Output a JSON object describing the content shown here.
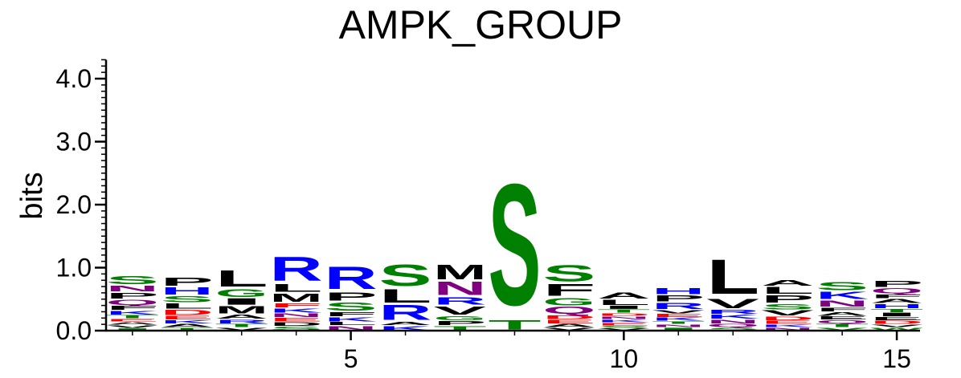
{
  "chart_data": {
    "type": "sequence-logo",
    "title": "AMPK_GROUP",
    "ylabel": "bits",
    "xlabel": "",
    "ylim": [
      0,
      4.3
    ],
    "y_major_ticks": [
      {
        "value": 0,
        "label": "0.0"
      },
      {
        "value": 1,
        "label": "1.0"
      },
      {
        "value": 2,
        "label": "2.0"
      },
      {
        "value": 3,
        "label": "3.0"
      },
      {
        "value": 4,
        "label": "4.0"
      }
    ],
    "y_minor_step": 0.1,
    "positions": [
      1,
      2,
      3,
      4,
      5,
      6,
      7,
      8,
      9,
      10,
      11,
      12,
      13,
      14,
      15
    ],
    "x_tick_labels": [
      {
        "position": 5,
        "label": "5"
      },
      {
        "position": 10,
        "label": "10"
      },
      {
        "position": 15,
        "label": "15"
      }
    ],
    "colors": {
      "green": "#008000",
      "blue": "#0000ff",
      "black": "#000000",
      "purple": "#800080",
      "red": "#ff0000"
    },
    "stacks": [
      {
        "position": 1,
        "letters": [
          {
            "letter": "I",
            "bits": 0.04,
            "color": "green"
          },
          {
            "letter": "V",
            "bits": 0.05,
            "color": "black"
          },
          {
            "letter": "A",
            "bits": 0.05,
            "color": "black"
          },
          {
            "letter": "E",
            "bits": 0.05,
            "color": "red"
          },
          {
            "letter": "T",
            "bits": 0.06,
            "color": "green"
          },
          {
            "letter": "K",
            "bits": 0.07,
            "color": "blue"
          },
          {
            "letter": "F",
            "bits": 0.08,
            "color": "black"
          },
          {
            "letter": "Q",
            "bits": 0.1,
            "color": "purple"
          },
          {
            "letter": "P",
            "bits": 0.11,
            "color": "black"
          },
          {
            "letter": "N",
            "bits": 0.11,
            "color": "purple"
          },
          {
            "letter": "S",
            "bits": 0.16,
            "color": "green"
          }
        ]
      },
      {
        "position": 2,
        "letters": [
          {
            "letter": "T",
            "bits": 0.05,
            "color": "green"
          },
          {
            "letter": "A",
            "bits": 0.06,
            "color": "black"
          },
          {
            "letter": "K",
            "bits": 0.06,
            "color": "blue"
          },
          {
            "letter": "E",
            "bits": 0.07,
            "color": "red"
          },
          {
            "letter": "D",
            "bits": 0.1,
            "color": "red"
          },
          {
            "letter": "L",
            "bits": 0.1,
            "color": "black"
          },
          {
            "letter": "S",
            "bits": 0.12,
            "color": "green"
          },
          {
            "letter": "H",
            "bits": 0.14,
            "color": "blue"
          },
          {
            "letter": "P",
            "bits": 0.16,
            "color": "black"
          }
        ]
      },
      {
        "position": 3,
        "letters": [
          {
            "letter": "V",
            "bits": 0.05,
            "color": "black"
          },
          {
            "letter": "T",
            "bits": 0.06,
            "color": "green"
          },
          {
            "letter": "R",
            "bits": 0.07,
            "color": "blue"
          },
          {
            "letter": "A",
            "bits": 0.08,
            "color": "black"
          },
          {
            "letter": "M",
            "bits": 0.14,
            "color": "black"
          },
          {
            "letter": "I",
            "bits": 0.12,
            "color": "black"
          },
          {
            "letter": "G",
            "bits": 0.15,
            "color": "green"
          },
          {
            "letter": "L",
            "bits": 0.3,
            "color": "black"
          }
        ]
      },
      {
        "position": 4,
        "letters": [
          {
            "letter": "S",
            "bits": 0.07,
            "color": "green"
          },
          {
            "letter": "D",
            "bits": 0.07,
            "color": "black"
          },
          {
            "letter": "E",
            "bits": 0.07,
            "color": "red"
          },
          {
            "letter": "N",
            "bits": 0.07,
            "color": "purple"
          },
          {
            "letter": "K",
            "bits": 0.08,
            "color": "blue"
          },
          {
            "letter": "F",
            "bits": 0.08,
            "color": "red"
          },
          {
            "letter": "M",
            "bits": 0.16,
            "color": "black"
          },
          {
            "letter": "L",
            "bits": 0.15,
            "color": "black"
          },
          {
            "letter": "R",
            "bits": 0.45,
            "color": "blue"
          }
        ]
      },
      {
        "position": 5,
        "letters": [
          {
            "letter": "N",
            "bits": 0.08,
            "color": "purple"
          },
          {
            "letter": "L",
            "bits": 0.06,
            "color": "black"
          },
          {
            "letter": "K",
            "bits": 0.08,
            "color": "blue"
          },
          {
            "letter": "F",
            "bits": 0.08,
            "color": "black"
          },
          {
            "letter": "S",
            "bits": 0.16,
            "color": "green"
          },
          {
            "letter": "P",
            "bits": 0.16,
            "color": "black"
          },
          {
            "letter": "R",
            "bits": 0.42,
            "color": "blue"
          }
        ]
      },
      {
        "position": 6,
        "letters": [
          {
            "letter": "K",
            "bits": 0.08,
            "color": "blue"
          },
          {
            "letter": "A",
            "bits": 0.06,
            "color": "black"
          },
          {
            "letter": "R",
            "bits": 0.28,
            "color": "blue"
          },
          {
            "letter": "L",
            "bits": 0.25,
            "color": "black"
          },
          {
            "letter": "S",
            "bits": 0.4,
            "color": "green"
          }
        ]
      },
      {
        "position": 7,
        "letters": [
          {
            "letter": "T",
            "bits": 0.08,
            "color": "green"
          },
          {
            "letter": "P",
            "bits": 0.08,
            "color": "black"
          },
          {
            "letter": "G",
            "bits": 0.08,
            "color": "green"
          },
          {
            "letter": "V",
            "bits": 0.16,
            "color": "black"
          },
          {
            "letter": "R",
            "bits": 0.14,
            "color": "blue"
          },
          {
            "letter": "N",
            "bits": 0.25,
            "color": "purple"
          },
          {
            "letter": "M",
            "bits": 0.27,
            "color": "black"
          }
        ]
      },
      {
        "position": 8,
        "letters": [
          {
            "letter": "T",
            "bits": 0.18,
            "color": "green"
          },
          {
            "letter": "S",
            "bits": 2.28,
            "color": "green"
          }
        ]
      },
      {
        "position": 9,
        "letters": [
          {
            "letter": "V",
            "bits": 0.05,
            "color": "black"
          },
          {
            "letter": "A",
            "bits": 0.06,
            "color": "black"
          },
          {
            "letter": "E",
            "bits": 0.07,
            "color": "red"
          },
          {
            "letter": "D",
            "bits": 0.07,
            "color": "red"
          },
          {
            "letter": "Q",
            "bits": 0.14,
            "color": "purple"
          },
          {
            "letter": "G",
            "bits": 0.14,
            "color": "green"
          },
          {
            "letter": "F",
            "bits": 0.22,
            "color": "black"
          },
          {
            "letter": "S",
            "bits": 0.3,
            "color": "green"
          }
        ]
      },
      {
        "position": 10,
        "letters": [
          {
            "letter": "V",
            "bits": 0.04,
            "color": "black"
          },
          {
            "letter": "S",
            "bits": 0.04,
            "color": "green"
          },
          {
            "letter": "E",
            "bits": 0.05,
            "color": "red"
          },
          {
            "letter": "K",
            "bits": 0.05,
            "color": "blue"
          },
          {
            "letter": "N",
            "bits": 0.05,
            "color": "purple"
          },
          {
            "letter": "D",
            "bits": 0.05,
            "color": "red"
          },
          {
            "letter": "T",
            "bits": 0.06,
            "color": "green"
          },
          {
            "letter": "I",
            "bits": 0.06,
            "color": "black"
          },
          {
            "letter": "L",
            "bits": 0.1,
            "color": "black"
          },
          {
            "letter": "A",
            "bits": 0.12,
            "color": "black"
          }
        ]
      },
      {
        "position": 11,
        "letters": [
          {
            "letter": "I",
            "bits": 0.05,
            "color": "green"
          },
          {
            "letter": "N",
            "bits": 0.05,
            "color": "purple"
          },
          {
            "letter": "T",
            "bits": 0.05,
            "color": "green"
          },
          {
            "letter": "K",
            "bits": 0.06,
            "color": "blue"
          },
          {
            "letter": "E",
            "bits": 0.06,
            "color": "red"
          },
          {
            "letter": "V",
            "bits": 0.06,
            "color": "black"
          },
          {
            "letter": "R",
            "bits": 0.12,
            "color": "blue"
          },
          {
            "letter": "P",
            "bits": 0.12,
            "color": "black"
          },
          {
            "letter": "H",
            "bits": 0.12,
            "color": "blue"
          }
        ]
      },
      {
        "position": 12,
        "letters": [
          {
            "letter": "S",
            "bits": 0.05,
            "color": "green"
          },
          {
            "letter": "Q",
            "bits": 0.06,
            "color": "purple"
          },
          {
            "letter": "N",
            "bits": 0.07,
            "color": "purple"
          },
          {
            "letter": "K",
            "bits": 0.08,
            "color": "blue"
          },
          {
            "letter": "R",
            "bits": 0.08,
            "color": "blue"
          },
          {
            "letter": "V",
            "bits": 0.18,
            "color": "black"
          },
          {
            "letter": "L",
            "bits": 0.65,
            "color": "black"
          }
        ]
      },
      {
        "position": 13,
        "letters": [
          {
            "letter": "N",
            "bits": 0.05,
            "color": "purple"
          },
          {
            "letter": "K",
            "bits": 0.05,
            "color": "blue"
          },
          {
            "letter": "E",
            "bits": 0.06,
            "color": "red"
          },
          {
            "letter": "D",
            "bits": 0.07,
            "color": "red"
          },
          {
            "letter": "V",
            "bits": 0.1,
            "color": "black"
          },
          {
            "letter": "S",
            "bits": 0.1,
            "color": "green"
          },
          {
            "letter": "P",
            "bits": 0.14,
            "color": "black"
          },
          {
            "letter": "L",
            "bits": 0.13,
            "color": "black"
          },
          {
            "letter": "A",
            "bits": 0.11,
            "color": "black"
          }
        ]
      },
      {
        "position": 14,
        "letters": [
          {
            "letter": "V",
            "bits": 0.05,
            "color": "green"
          },
          {
            "letter": "T",
            "bits": 0.06,
            "color": "green"
          },
          {
            "letter": "Q",
            "bits": 0.06,
            "color": "purple"
          },
          {
            "letter": "E",
            "bits": 0.06,
            "color": "black"
          },
          {
            "letter": "A",
            "bits": 0.07,
            "color": "black"
          },
          {
            "letter": "F",
            "bits": 0.07,
            "color": "black"
          },
          {
            "letter": "N",
            "bits": 0.12,
            "color": "purple"
          },
          {
            "letter": "K",
            "bits": 0.14,
            "color": "blue"
          },
          {
            "letter": "S",
            "bits": 0.16,
            "color": "green"
          }
        ]
      },
      {
        "position": 15,
        "letters": [
          {
            "letter": "W",
            "bits": 0.05,
            "color": "green"
          },
          {
            "letter": "V",
            "bits": 0.05,
            "color": "black"
          },
          {
            "letter": "D",
            "bits": 0.06,
            "color": "red"
          },
          {
            "letter": "E",
            "bits": 0.06,
            "color": "black"
          },
          {
            "letter": "I",
            "bits": 0.07,
            "color": "black"
          },
          {
            "letter": "T",
            "bits": 0.06,
            "color": "green"
          },
          {
            "letter": "H",
            "bits": 0.08,
            "color": "blue"
          },
          {
            "letter": "A",
            "bits": 0.08,
            "color": "black"
          },
          {
            "letter": "F",
            "bits": 0.07,
            "color": "black"
          },
          {
            "letter": "Q",
            "bits": 0.1,
            "color": "purple"
          },
          {
            "letter": "P",
            "bits": 0.12,
            "color": "black"
          }
        ]
      }
    ]
  }
}
